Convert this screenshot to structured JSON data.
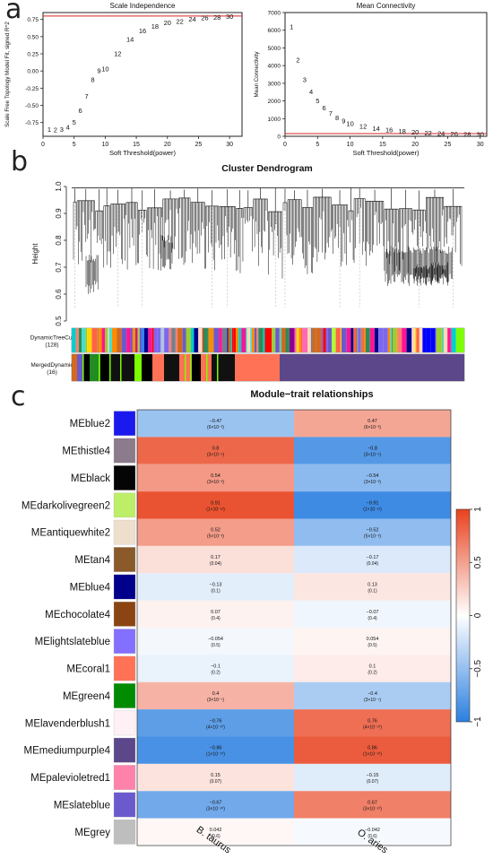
{
  "panel_letters": [
    "a",
    "b",
    "c"
  ],
  "chart_data": [
    {
      "type": "scatter",
      "title": "Scale Independence",
      "xlabel": "Soft Threshold(power)",
      "ylabel": "Scale Free Topology Model Fit, signed R^2",
      "xlim": [
        0,
        32
      ],
      "ylim": [
        -0.95,
        0.85
      ],
      "xticks": [
        0,
        5,
        10,
        15,
        20,
        25,
        30
      ],
      "yticks": [
        -0.75,
        -0.5,
        -0.25,
        0.0,
        0.25,
        0.5,
        0.75
      ],
      "ytick_labels": [
        "-0.75",
        "-0.50",
        "-0.25",
        "0.00",
        "0.25",
        "0.50",
        "0.75"
      ],
      "threshold_line": 0.8,
      "threshold_color": "#d92525",
      "points_as_labels": true,
      "x": [
        1,
        2,
        3,
        4,
        5,
        6,
        7,
        8,
        9,
        10,
        12,
        14,
        16,
        18,
        20,
        22,
        24,
        26,
        28,
        30
      ],
      "y": [
        -0.85,
        -0.86,
        -0.85,
        -0.82,
        -0.75,
        -0.58,
        -0.37,
        -0.13,
        0.0,
        0.03,
        0.25,
        0.46,
        0.58,
        0.65,
        0.7,
        0.72,
        0.75,
        0.77,
        0.78,
        0.79
      ]
    },
    {
      "type": "scatter",
      "title": "Mean Connectivity",
      "xlabel": "Soft Threshold(power)",
      "ylabel": "Mean Connectivity",
      "xlim": [
        0,
        31
      ],
      "ylim": [
        0,
        7000
      ],
      "xticks": [
        0,
        5,
        10,
        15,
        20,
        25,
        30
      ],
      "yticks": [
        0,
        1000,
        2000,
        3000,
        4000,
        5000,
        6000,
        7000
      ],
      "ytick_labels": [
        "0",
        "1000",
        "2000",
        "3000",
        "4000",
        "5000",
        "6000",
        "7000"
      ],
      "threshold_line": 150,
      "threshold_color": "#d92525",
      "points_as_labels": true,
      "x": [
        1,
        2,
        3,
        4,
        5,
        6,
        7,
        8,
        9,
        10,
        12,
        14,
        16,
        18,
        20,
        22,
        24,
        26,
        28,
        30
      ],
      "y": [
        6200,
        4300,
        3200,
        2500,
        2000,
        1600,
        1300,
        1050,
        850,
        700,
        550,
        430,
        350,
        280,
        230,
        190,
        160,
        130,
        110,
        90
      ]
    },
    {
      "type": "dendrogram",
      "title": "Cluster Dendrogram",
      "ylabel": "Height",
      "ylim": [
        0.5,
        1.0
      ],
      "yticks": [
        0.5,
        0.6,
        0.7,
        0.8,
        0.9,
        1.0
      ],
      "ytick_labels": [
        "0.5",
        "0.6",
        "0.7",
        "0.8",
        "0.9",
        "1.0"
      ],
      "color_rows": [
        {
          "label": "DynamicTreeCut",
          "sublabel": "(128)"
        },
        {
          "label": "MergedDynamic",
          "sublabel": "(16)"
        }
      ]
    },
    {
      "type": "heatmap",
      "title": "Module−trait relationships",
      "columns": [
        "B. taurus",
        "O. aries"
      ],
      "colorbar": {
        "min": -1,
        "max": 1,
        "ticks": [
          1,
          0.5,
          0,
          -0.5,
          -1
        ],
        "tick_labels": [
          "1",
          "0.5",
          "0",
          "−0.5",
          "−1"
        ],
        "low_color": "#2b7fe0",
        "mid_color": "#ffffff",
        "high_color": "#e8421e"
      },
      "rows": [
        {
          "module": "MEblue2",
          "color": "#1a1aee",
          "values": [
            -0.47,
            0.47
          ],
          "labels": [
            "−0.47",
            "0.47"
          ],
          "pvalues": [
            "(6×10⁻³)",
            "(6×10⁻³)"
          ]
        },
        {
          "module": "MEthistle4",
          "color": "#8b7b8b",
          "values": [
            0.8,
            -0.8
          ],
          "labels": [
            "0.8",
            "−0.8"
          ],
          "pvalues": [
            "(3×10⁻⁸)",
            "(3×10⁻⁸)"
          ]
        },
        {
          "module": "MEblack",
          "color": "#050505",
          "values": [
            0.54,
            -0.54
          ],
          "labels": [
            "0.54",
            "−0.54"
          ],
          "pvalues": [
            "(3×10⁻³)",
            "(3×10⁻³)"
          ]
        },
        {
          "module": "MEdarkolivegreen2",
          "color": "#bcee68",
          "values": [
            0.91,
            -0.91
          ],
          "labels": [
            "0.91",
            "−0.91"
          ],
          "pvalues": [
            "(1×10⁻¹²)",
            "(1×10⁻¹²)"
          ]
        },
        {
          "module": "MEantiquewhite2",
          "color": "#eedfcc",
          "values": [
            0.52,
            -0.52
          ],
          "labels": [
            "0.52",
            "−0.52"
          ],
          "pvalues": [
            "(5×10⁻³)",
            "(5×10⁻³)"
          ]
        },
        {
          "module": "MEtan4",
          "color": "#8b5a2b",
          "values": [
            0.17,
            -0.17
          ],
          "labels": [
            "0.17",
            "−0.17"
          ],
          "pvalues": [
            "(0.04)",
            "(0.04)"
          ]
        },
        {
          "module": "MEblue4",
          "color": "#00008b",
          "values": [
            -0.13,
            0.13
          ],
          "labels": [
            "−0.13",
            "0.13"
          ],
          "pvalues": [
            "(0.1)",
            "(0.1)"
          ]
        },
        {
          "module": "MEchocolate4",
          "color": "#8b4513",
          "values": [
            0.07,
            -0.07
          ],
          "labels": [
            "0.07",
            "−0.07"
          ],
          "pvalues": [
            "(0.4)",
            "(0.4)"
          ]
        },
        {
          "module": "MElightslateblue",
          "color": "#8470ff",
          "values": [
            -0.054,
            0.054
          ],
          "labels": [
            "−0.054",
            "0.054"
          ],
          "pvalues": [
            "(0.5)",
            "(0.5)"
          ]
        },
        {
          "module": "MEcoral1",
          "color": "#ff7256",
          "values": [
            -0.1,
            0.1
          ],
          "labels": [
            "−0.1",
            "0.1"
          ],
          "pvalues": [
            "(0.2)",
            "(0.2)"
          ]
        },
        {
          "module": "MEgreen4",
          "color": "#008b00",
          "values": [
            0.4,
            -0.4
          ],
          "labels": [
            "0.4",
            "−0.4"
          ],
          "pvalues": [
            "(3×10⁻⁷)",
            "(3×10⁻⁷)"
          ]
        },
        {
          "module": "MElavenderblush1",
          "color": "#fff0f5",
          "values": [
            -0.76,
            0.76
          ],
          "labels": [
            "−0.76",
            "0.76"
          ],
          "pvalues": [
            "(4×10⁻¹⁰)",
            "(4×10⁻¹⁰)"
          ]
        },
        {
          "module": "MEmediumpurple4",
          "color": "#5d478b",
          "values": [
            -0.86,
            0.86
          ],
          "labels": [
            "−0.86",
            "0.86"
          ],
          "pvalues": [
            "(1×10⁻¹⁰)",
            "(1×10⁻¹⁰)"
          ]
        },
        {
          "module": "MEpalevioletred1",
          "color": "#ff82ab",
          "values": [
            0.15,
            -0.15
          ],
          "labels": [
            "0.15",
            "−0.15"
          ],
          "pvalues": [
            "(0.07)",
            "(0.07)"
          ]
        },
        {
          "module": "MEslateblue",
          "color": "#6a5acd",
          "values": [
            -0.67,
            0.67
          ],
          "labels": [
            "−0.67",
            "0.67"
          ],
          "pvalues": [
            "(3×10⁻¹⁰)",
            "(3×10⁻¹⁰)"
          ]
        },
        {
          "module": "MEgrey",
          "color": "#bebebe",
          "values": [
            0.042,
            -0.042
          ],
          "labels": [
            "0.042",
            "−0.042"
          ],
          "pvalues": [
            "(0.6)",
            "(0.6)"
          ]
        }
      ]
    }
  ]
}
